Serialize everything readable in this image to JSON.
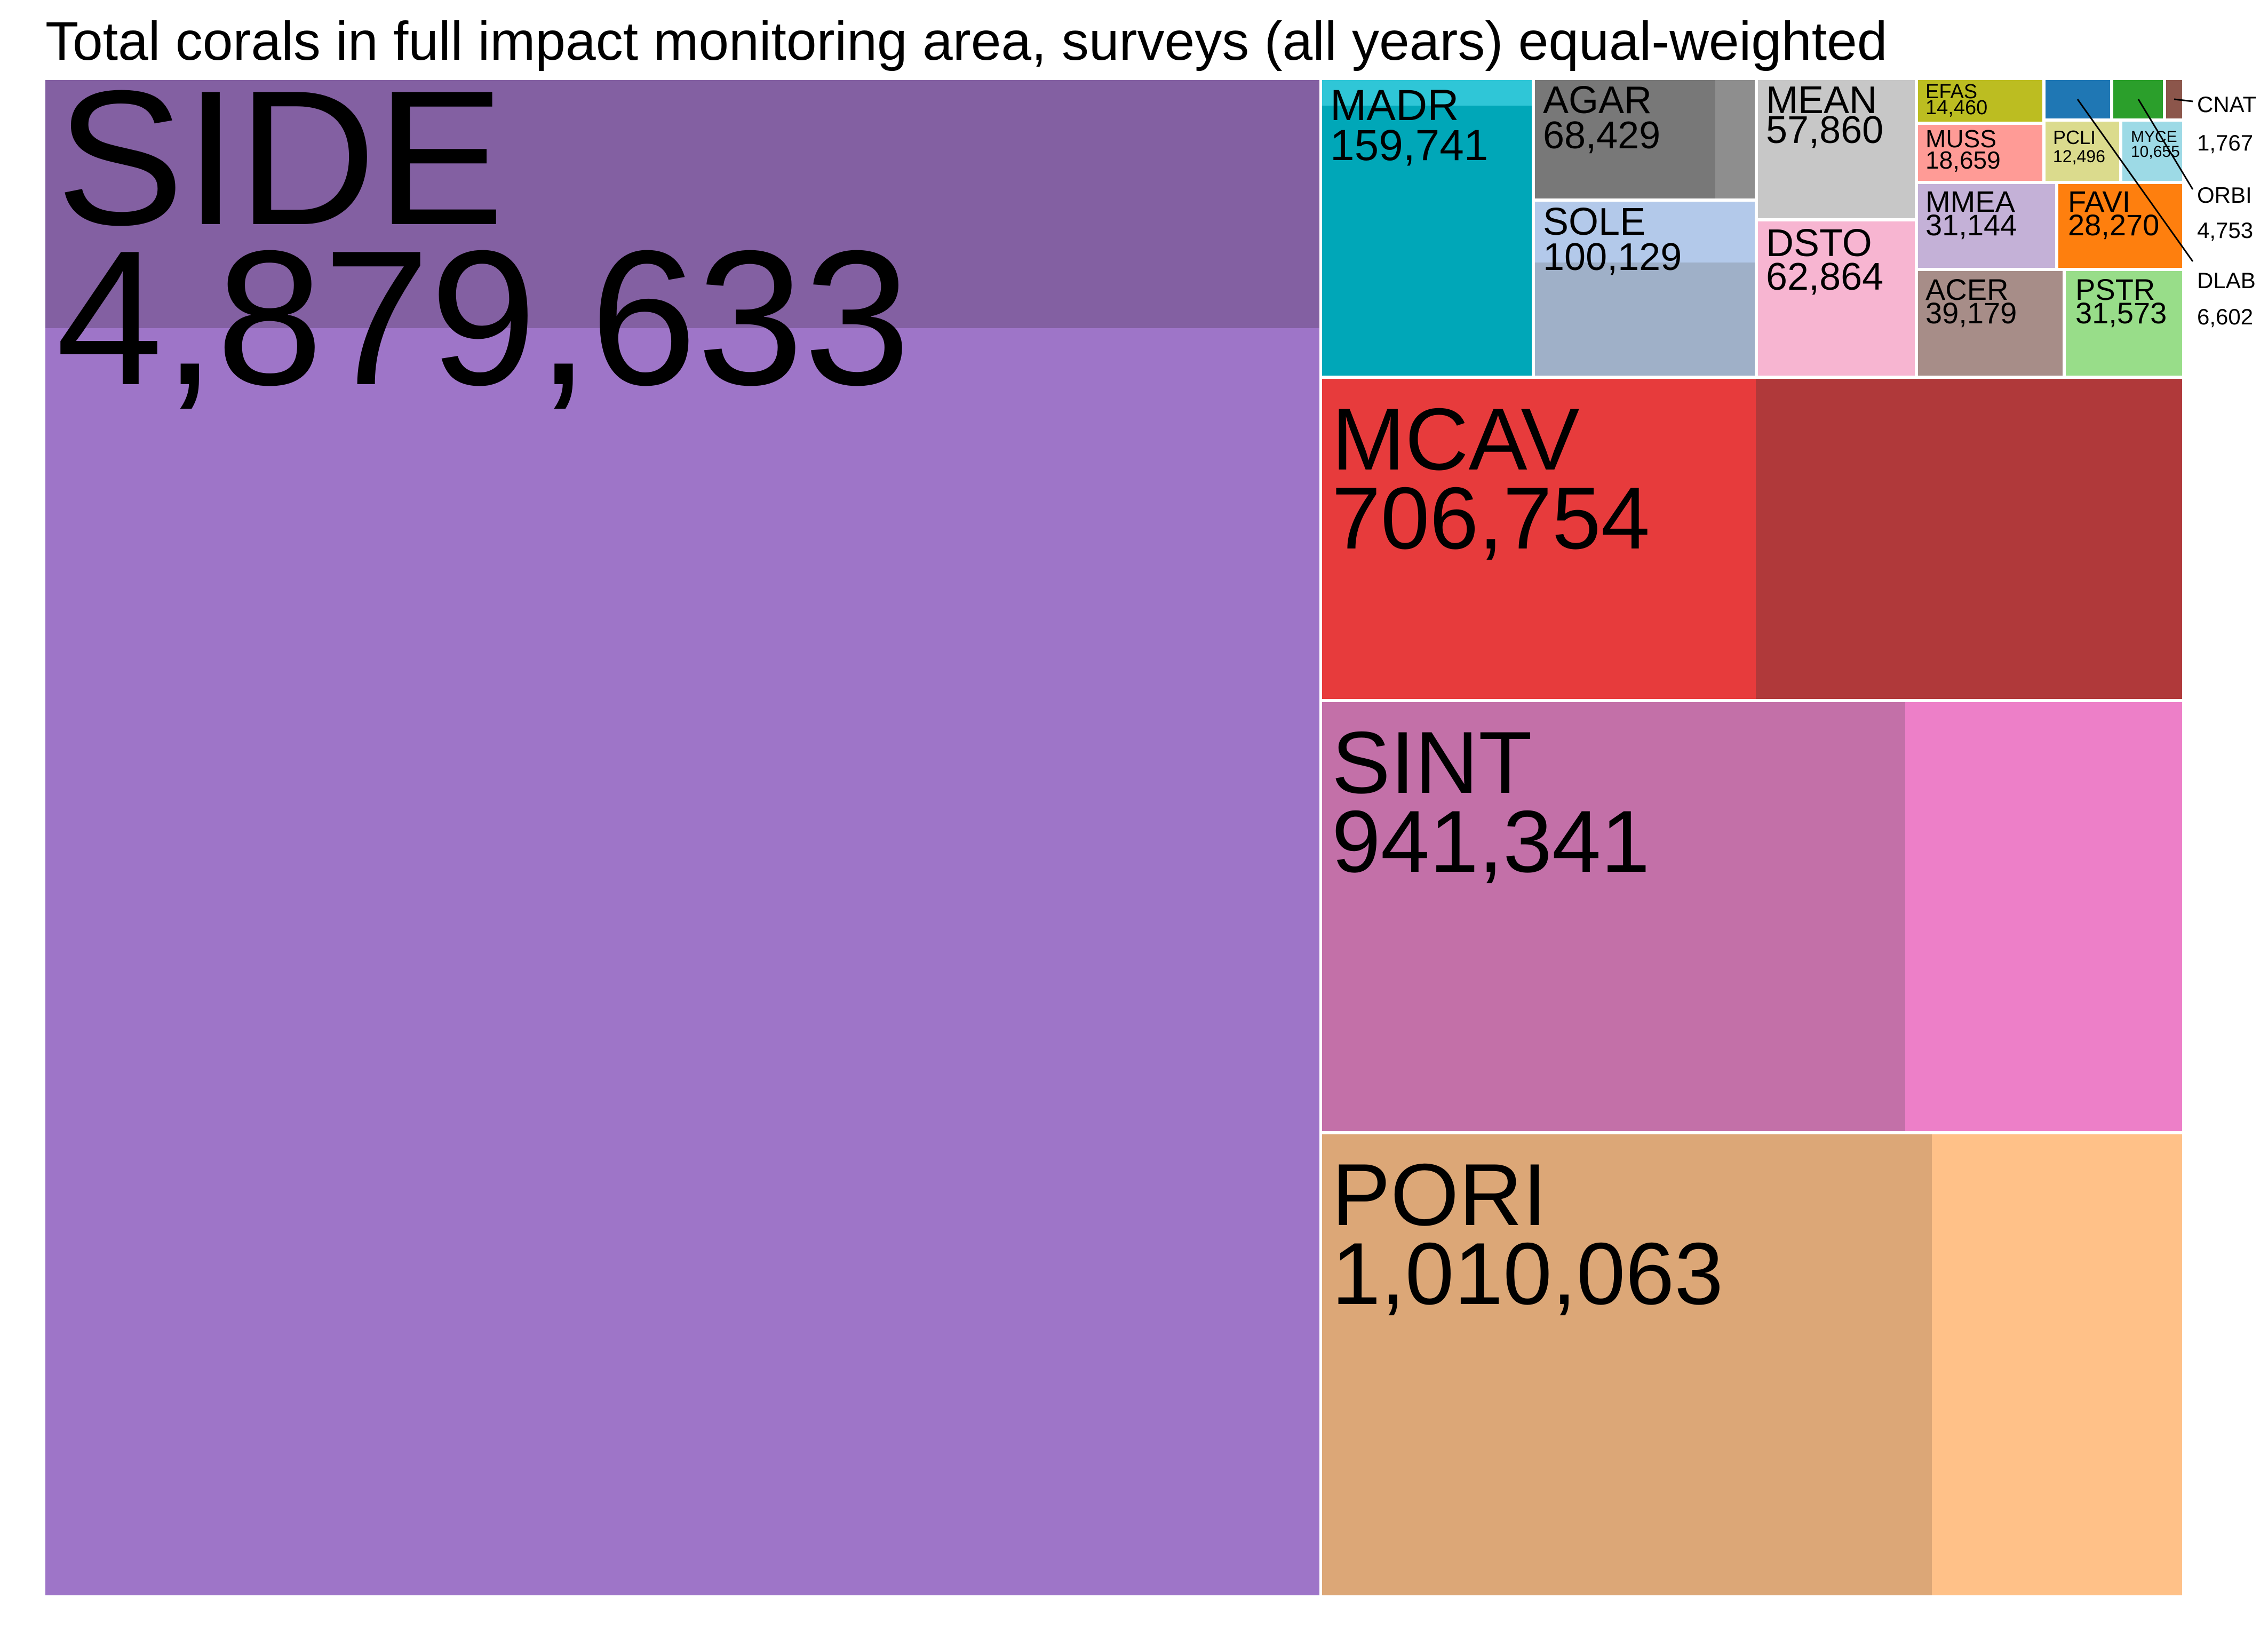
{
  "chart_data": {
    "type": "treemap",
    "title": "Total corals in full impact monitoring area, surveys (all years) equal-weighted",
    "items": [
      {
        "code": "SIDE",
        "value": 4879633,
        "label": "4,879,633",
        "colors": [
          "#9e75c8",
          "#8360a2"
        ]
      },
      {
        "code": "PORI",
        "value": 1010063,
        "label": "1,010,063",
        "colors": [
          "#dca777",
          "#ffc188"
        ]
      },
      {
        "code": "SINT",
        "value": 941341,
        "label": "941,341",
        "colors": [
          "#c370a8",
          "#ed7fc8"
        ]
      },
      {
        "code": "MCAV",
        "value": 706754,
        "label": "706,754",
        "colors": [
          "#e73b3c",
          "#b0393a"
        ]
      },
      {
        "code": "MADR",
        "value": 159741,
        "label": "159,741",
        "colors": [
          "#00a7b8",
          "#2fc6d7"
        ]
      },
      {
        "code": "SOLE",
        "value": 100129,
        "label": "100,129",
        "colors": [
          "#9fb0c8",
          "#b3c9ea"
        ]
      },
      {
        "code": "AGAR",
        "value": 68429,
        "label": "68,429",
        "colors": [
          "#787878",
          "#8e8e8e"
        ]
      },
      {
        "code": "DSTO",
        "value": 62864,
        "label": "62,864",
        "colors": [
          "#f7b5d1"
        ]
      },
      {
        "code": "MEAN",
        "value": 57860,
        "label": "57,860",
        "colors": [
          "#c7c7c7"
        ]
      },
      {
        "code": "ACER",
        "value": 39179,
        "label": "39,179",
        "colors": [
          "#a78d88"
        ]
      },
      {
        "code": "PSTR",
        "value": 31573,
        "label": "31,573",
        "colors": [
          "#98dd89"
        ]
      },
      {
        "code": "MMEA",
        "value": 31144,
        "label": "31,144",
        "colors": [
          "#c4b1d7"
        ]
      },
      {
        "code": "FAVI",
        "value": 28270,
        "label": "28,270",
        "colors": [
          "#fe7f0e"
        ]
      },
      {
        "code": "MUSS",
        "value": 18659,
        "label": "18,659",
        "colors": [
          "#ff9b96"
        ]
      },
      {
        "code": "EFAS",
        "value": 14460,
        "label": "14,460",
        "colors": [
          "#bcbd21"
        ]
      },
      {
        "code": "PCLI",
        "value": 12496,
        "label": "12,496",
        "colors": [
          "#dbdb8d"
        ]
      },
      {
        "code": "MYCE",
        "value": 10655,
        "label": "10,655",
        "colors": [
          "#9ddae6"
        ]
      },
      {
        "code": "DLAB",
        "value": 6602,
        "label": "6,602",
        "colors": [
          "#1f77b4"
        ]
      },
      {
        "code": "ORBI",
        "value": 4753,
        "label": "4,753",
        "colors": [
          "#2b9f2b"
        ]
      },
      {
        "code": "CNAT",
        "value": 1767,
        "label": "1,767",
        "colors": [
          "#8c564b"
        ]
      }
    ]
  }
}
